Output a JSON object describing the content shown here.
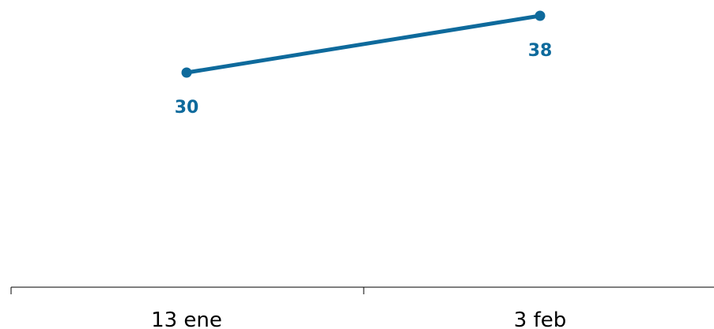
{
  "chart_data": {
    "type": "line",
    "categories": [
      "13 ene",
      "3 feb"
    ],
    "series": [
      {
        "values": [
          30,
          38
        ],
        "color": "#0e6a9c"
      }
    ],
    "data_labels": [
      "30",
      "38"
    ],
    "title": "",
    "xlabel": "",
    "ylabel": "",
    "grid": false,
    "legend": "none"
  }
}
